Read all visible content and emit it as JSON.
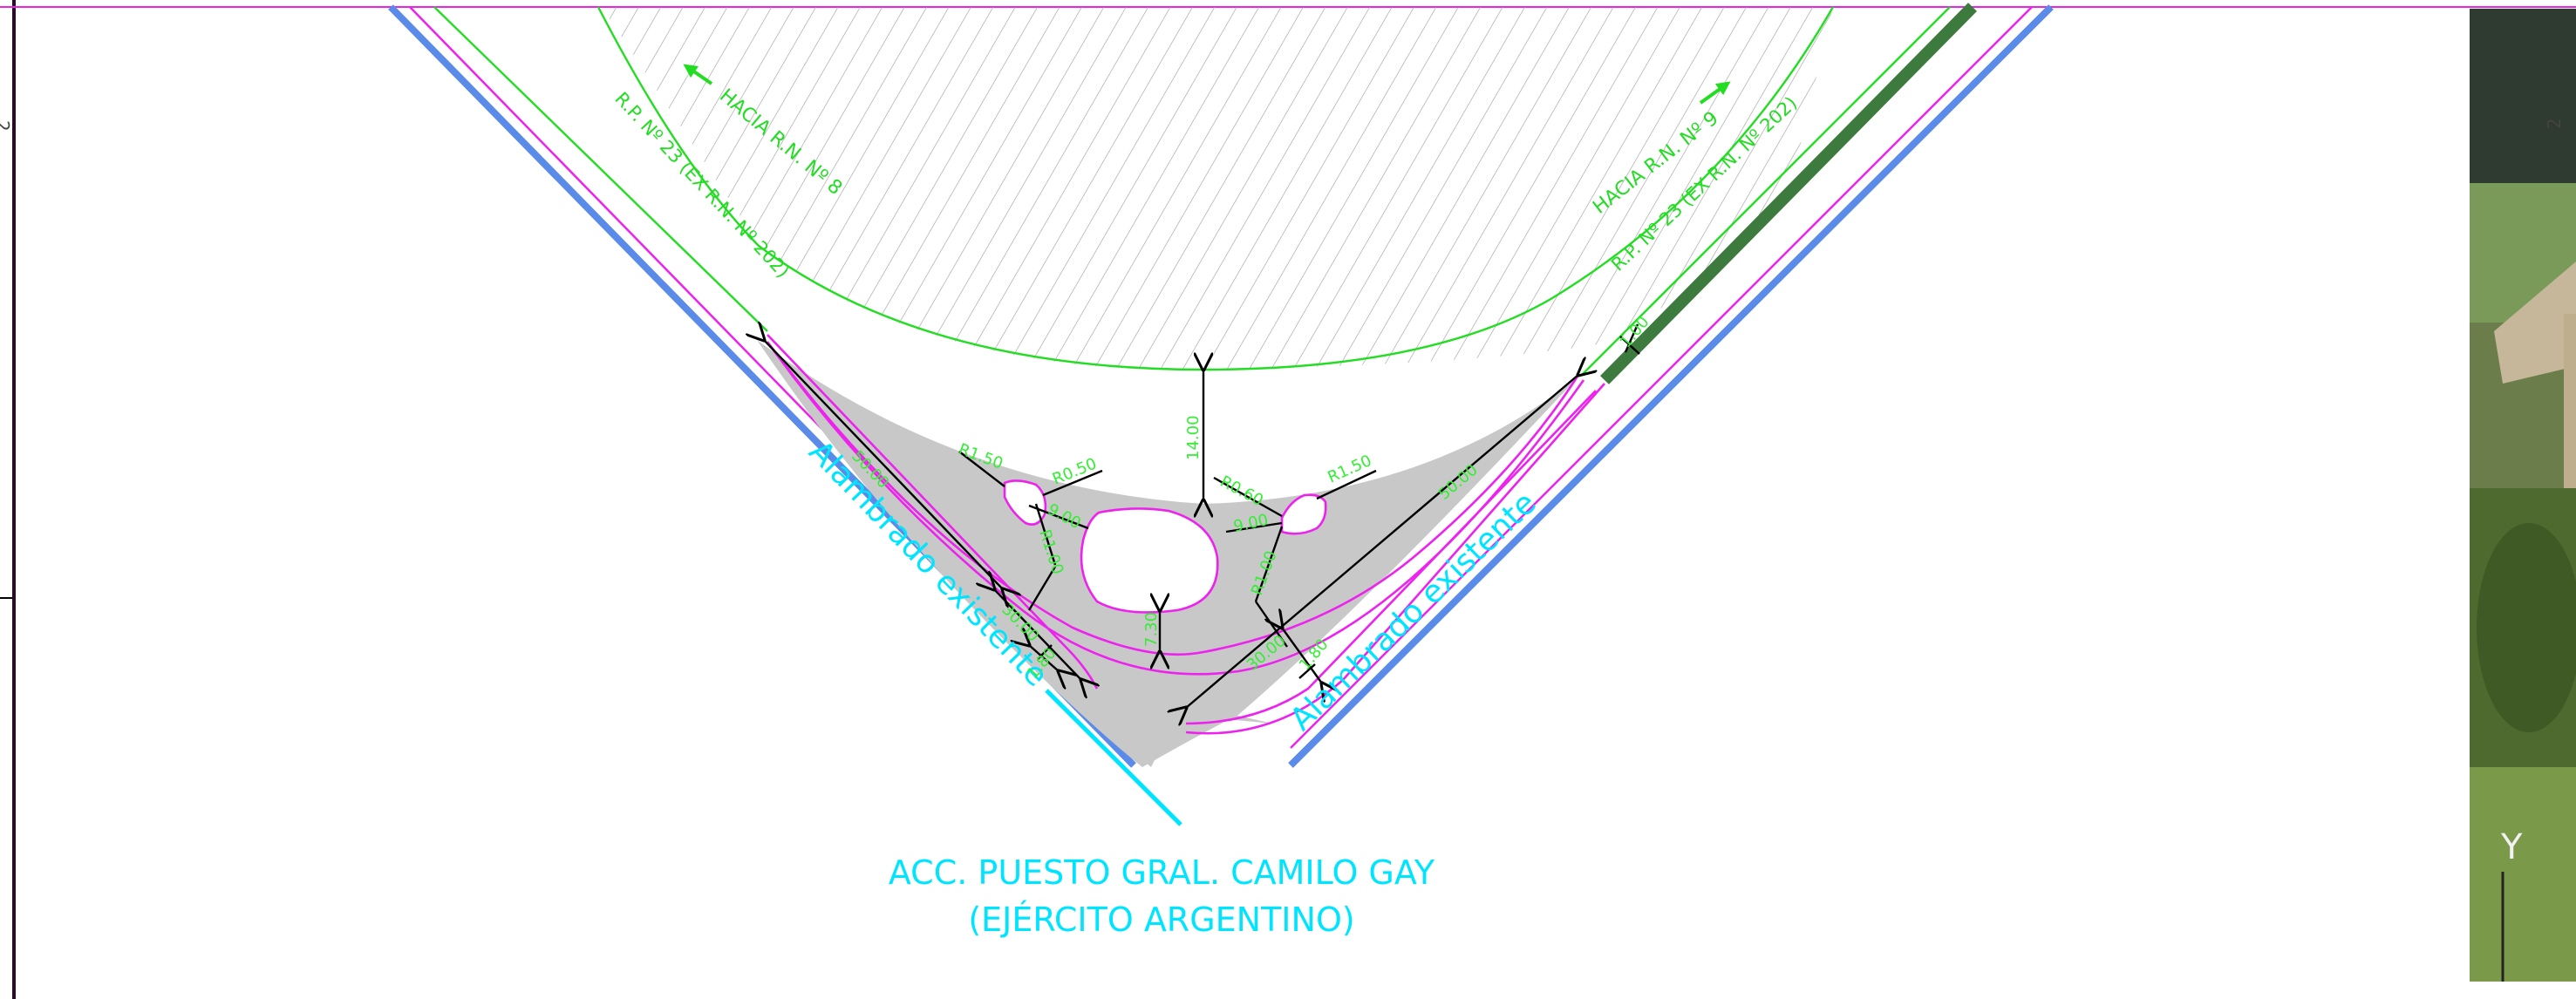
{
  "roads": {
    "left_direction": "HACIA R.N. Nº 8",
    "left_route": "R.P. Nº 23 (EX R.N. Nº 202)",
    "right_direction": "HACIA R.N. Nº 9",
    "right_route": "R.P. Nº 23 (EX R.N. Nº 202)"
  },
  "fences": {
    "left": "Alambrado existente",
    "right": "Alambrado existente"
  },
  "access": {
    "line1": "ACC. PUESTO GRAL. CAMILO GAY",
    "line2": "(EJÉRCITO ARGENTINO)"
  },
  "dimensions": {
    "d_center_top": "14.00",
    "d_center_bottom": "7.30",
    "d_right_long": "50.00",
    "d_right_short": "30.00",
    "d_left_long": "50.00",
    "d_left_short": "30.00",
    "d_left_small": "1.80",
    "d_right_small": "1.80",
    "d_topright": "1.00",
    "r1": "R1.50",
    "r2": "R0.50",
    "r3": "R0.60",
    "r4": "R1.50",
    "r5": "R1.00",
    "r6": "R1.00",
    "d_left_island": "9.00",
    "d_right_island": "9.00"
  },
  "side_marks": {
    "left_top": "2",
    "right_top": "2",
    "axis_y": "Y"
  },
  "colors": {
    "road_edge": "#22dd22",
    "curb": "#ee22ee",
    "boundary": "#5b8be8",
    "fence_label": "#00e5ff",
    "paved": "#c8c8c8"
  }
}
